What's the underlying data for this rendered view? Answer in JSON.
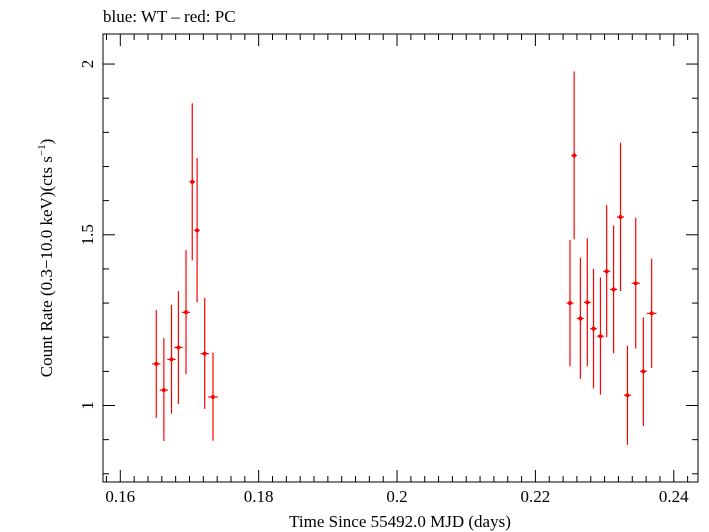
{
  "chart_data": {
    "type": "scatter",
    "title": "blue: WT – red: PC",
    "xlabel": "Time Since 55492.0 MJD (days)",
    "ylabel_main": "Count Rate (0.3−10.0 keV)(cts s",
    "ylabel_exp": "−1",
    "ylabel_close": ")",
    "xlim": [
      0.1575,
      0.2435
    ],
    "ylim": [
      0.776,
      2.088
    ],
    "xticks": [
      0.16,
      0.18,
      0.2,
      0.22,
      0.24
    ],
    "xtick_labels": [
      "0.16",
      "0.18",
      "0.2",
      "0.22",
      "0.24"
    ],
    "yticks": [
      1,
      1.5,
      2
    ],
    "ytick_labels": [
      "1",
      "1.5",
      "2"
    ],
    "grid": false,
    "series": [
      {
        "name": "PC",
        "color": "#ff0000",
        "points": [
          {
            "x": 0.1652,
            "xerr": 0.0006,
            "y": 1.122,
            "ylo": 0.964,
            "yhi": 1.28
          },
          {
            "x": 0.1663,
            "xerr": 0.0006,
            "y": 1.045,
            "ylo": 0.896,
            "yhi": 1.197
          },
          {
            "x": 0.1674,
            "xerr": 0.0006,
            "y": 1.135,
            "ylo": 0.976,
            "yhi": 1.295
          },
          {
            "x": 0.1684,
            "xerr": 0.0006,
            "y": 1.17,
            "ylo": 1.004,
            "yhi": 1.335
          },
          {
            "x": 0.1695,
            "xerr": 0.0006,
            "y": 1.273,
            "ylo": 1.092,
            "yhi": 1.455
          },
          {
            "x": 0.1704,
            "xerr": 0.0004,
            "y": 1.655,
            "ylo": 1.425,
            "yhi": 1.885
          },
          {
            "x": 0.1711,
            "xerr": 0.0004,
            "y": 1.513,
            "ylo": 1.302,
            "yhi": 1.725
          },
          {
            "x": 0.1722,
            "xerr": 0.0006,
            "y": 1.152,
            "ylo": 0.99,
            "yhi": 1.315
          },
          {
            "x": 0.1734,
            "xerr": 0.0007,
            "y": 1.025,
            "ylo": 0.897,
            "yhi": 1.155
          },
          {
            "x": 0.225,
            "xerr": 0.0005,
            "y": 1.3,
            "ylo": 1.115,
            "yhi": 1.485
          },
          {
            "x": 0.2256,
            "xerr": 0.0004,
            "y": 1.732,
            "ylo": 1.487,
            "yhi": 1.978
          },
          {
            "x": 0.2265,
            "xerr": 0.0005,
            "y": 1.255,
            "ylo": 1.078,
            "yhi": 1.433
          },
          {
            "x": 0.2275,
            "xerr": 0.0005,
            "y": 1.302,
            "ylo": 1.115,
            "yhi": 1.49
          },
          {
            "x": 0.2284,
            "xerr": 0.0005,
            "y": 1.225,
            "ylo": 1.05,
            "yhi": 1.4
          },
          {
            "x": 0.2294,
            "xerr": 0.0005,
            "y": 1.203,
            "ylo": 1.032,
            "yhi": 1.375
          },
          {
            "x": 0.2303,
            "xerr": 0.0005,
            "y": 1.393,
            "ylo": 1.2,
            "yhi": 1.587
          },
          {
            "x": 0.2313,
            "xerr": 0.0005,
            "y": 1.34,
            "ylo": 1.153,
            "yhi": 1.527
          },
          {
            "x": 0.2323,
            "xerr": 0.0005,
            "y": 1.552,
            "ylo": 1.335,
            "yhi": 1.77
          },
          {
            "x": 0.2333,
            "xerr": 0.0005,
            "y": 1.03,
            "ylo": 0.885,
            "yhi": 1.175
          },
          {
            "x": 0.2345,
            "xerr": 0.0006,
            "y": 1.358,
            "ylo": 1.167,
            "yhi": 1.55
          },
          {
            "x": 0.2356,
            "xerr": 0.0005,
            "y": 1.1,
            "ylo": 0.94,
            "yhi": 1.258
          },
          {
            "x": 0.2368,
            "xerr": 0.0007,
            "y": 1.27,
            "ylo": 1.11,
            "yhi": 1.43
          }
        ]
      }
    ]
  }
}
